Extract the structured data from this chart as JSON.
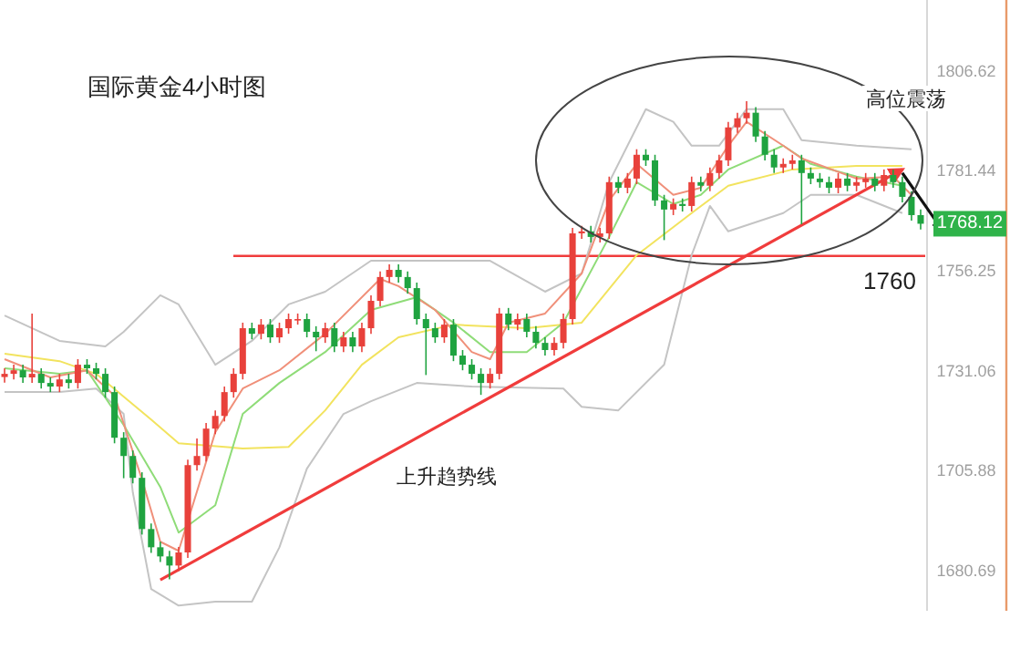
{
  "chart_data": {
    "type": "candlestick",
    "title": "国际黄金4小时图",
    "categories": [
      null,
      null,
      null,
      null,
      null,
      null,
      null,
      null,
      null,
      null,
      null,
      null,
      null,
      null,
      null,
      null,
      null,
      null,
      null,
      null,
      null,
      null,
      null,
      null,
      null,
      null,
      null,
      null,
      null,
      null,
      null,
      null,
      null,
      null,
      null,
      null,
      null,
      null,
      null,
      null,
      null,
      null,
      null,
      null,
      null,
      null,
      null,
      null,
      null,
      null,
      null,
      null,
      null,
      null,
      null,
      null,
      null,
      null,
      null,
      null,
      null,
      null,
      null,
      null,
      null,
      null,
      null,
      null,
      null,
      null,
      null,
      null,
      null,
      null,
      null,
      null,
      null,
      null,
      null,
      null,
      null,
      null,
      null,
      null,
      null,
      null,
      null,
      null,
      null,
      null,
      null,
      null,
      null,
      null,
      null,
      null,
      null,
      null,
      null,
      null,
      null
    ],
    "ohlc": [
      [
        1729.5,
        1731.7,
        1728.1,
        1730.3
      ],
      [
        1730.3,
        1732.6,
        1728.9,
        1731.2
      ],
      [
        1731.2,
        1732.6,
        1728.0,
        1729.4
      ],
      [
        1729.4,
        1745.5,
        1728.0,
        1730.3
      ],
      [
        1730.3,
        1731.7,
        1726.6,
        1728.0
      ],
      [
        1728.0,
        1729.4,
        1725.7,
        1727.1
      ],
      [
        1727.1,
        1730.3,
        1725.7,
        1728.9
      ],
      [
        1728.9,
        1730.3,
        1726.6,
        1728.0
      ],
      [
        1728.0,
        1734.0,
        1726.6,
        1732.6
      ],
      [
        1732.6,
        1734.0,
        1730.3,
        1731.7
      ],
      [
        1731.7,
        1733.1,
        1728.9,
        1730.3
      ],
      [
        1730.3,
        1731.7,
        1724.3,
        1725.7
      ],
      [
        1725.7,
        1727.1,
        1712.8,
        1714.2
      ],
      [
        1714.2,
        1715.6,
        1704.0,
        1709.6
      ],
      [
        1709.6,
        1711.0,
        1702.7,
        1704.1
      ],
      [
        1704.1,
        1705.5,
        1689.8,
        1691.2
      ],
      [
        1691.2,
        1692.6,
        1685.2,
        1686.6
      ],
      [
        1686.6,
        1688.0,
        1682.9,
        1684.3
      ],
      [
        1684.3,
        1685.7,
        1678.5,
        1682.0
      ],
      [
        1682.0,
        1686.7,
        1680.6,
        1685.3
      ],
      [
        1685.3,
        1708.7,
        1683.9,
        1707.3
      ],
      [
        1707.3,
        1714.0,
        1705.9,
        1709.6
      ],
      [
        1709.6,
        1717.9,
        1708.2,
        1716.5
      ],
      [
        1716.5,
        1721.1,
        1715.1,
        1719.7
      ],
      [
        1719.7,
        1727.1,
        1718.3,
        1725.7
      ],
      [
        1725.7,
        1731.7,
        1724.3,
        1730.3
      ],
      [
        1730.3,
        1743.2,
        1728.9,
        1741.8
      ],
      [
        1741.8,
        1743.2,
        1739.0,
        1740.4
      ],
      [
        1740.4,
        1744.1,
        1739.0,
        1742.7
      ],
      [
        1742.7,
        1744.1,
        1738.1,
        1739.5
      ],
      [
        1739.5,
        1743.2,
        1738.1,
        1741.8
      ],
      [
        1741.8,
        1745.5,
        1740.4,
        1744.1
      ],
      [
        1744.1,
        1745.5,
        1742.7,
        1744.1
      ],
      [
        1744.1,
        1745.5,
        1739.5,
        1740.9
      ],
      [
        1740.9,
        1742.3,
        1736.0,
        1739.5
      ],
      [
        1739.5,
        1743.2,
        1738.1,
        1741.8
      ],
      [
        1741.8,
        1743.2,
        1735.8,
        1737.2
      ],
      [
        1737.2,
        1740.9,
        1735.8,
        1739.5
      ],
      [
        1739.5,
        1740.9,
        1735.8,
        1737.2
      ],
      [
        1737.2,
        1743.2,
        1735.8,
        1741.8
      ],
      [
        1741.8,
        1750.1,
        1740.4,
        1748.7
      ],
      [
        1748.7,
        1756.1,
        1747.3,
        1754.7
      ],
      [
        1754.7,
        1757.9,
        1753.3,
        1756.5
      ],
      [
        1756.5,
        1757.9,
        1753.3,
        1754.7
      ],
      [
        1754.7,
        1756.1,
        1750.5,
        1751.9
      ],
      [
        1751.9,
        1753.3,
        1742.7,
        1744.1
      ],
      [
        1744.1,
        1745.5,
        1730.0,
        1741.8
      ],
      [
        1741.8,
        1743.2,
        1738.1,
        1739.5
      ],
      [
        1739.5,
        1744.1,
        1738.1,
        1742.7
      ],
      [
        1742.7,
        1744.1,
        1733.5,
        1734.9
      ],
      [
        1734.9,
        1736.3,
        1731.2,
        1732.6
      ],
      [
        1732.6,
        1734.0,
        1728.9,
        1730.3
      ],
      [
        1730.3,
        1731.7,
        1725.0,
        1728.0
      ],
      [
        1728.0,
        1731.7,
        1726.6,
        1730.3
      ],
      [
        1730.3,
        1746.9,
        1728.9,
        1745.5
      ],
      [
        1745.5,
        1746.9,
        1741.3,
        1742.7
      ],
      [
        1742.7,
        1745.5,
        1741.3,
        1744.1
      ],
      [
        1744.1,
        1745.5,
        1739.5,
        1740.9
      ],
      [
        1740.9,
        1742.3,
        1736.7,
        1738.1
      ],
      [
        1738.1,
        1739.5,
        1734.9,
        1736.3
      ],
      [
        1736.3,
        1739.5,
        1734.9,
        1738.1
      ],
      [
        1738.1,
        1745.5,
        1736.7,
        1744.1
      ],
      [
        1744.1,
        1767.1,
        1742.7,
        1765.7
      ],
      [
        1765.7,
        1767.6,
        1764.3,
        1766.2
      ],
      [
        1766.2,
        1767.6,
        1763.4,
        1764.8
      ],
      [
        1764.8,
        1767.1,
        1763.4,
        1765.7
      ],
      [
        1765.7,
        1780.0,
        1764.3,
        1778.6
      ],
      [
        1778.6,
        1780.0,
        1775.8,
        1777.2
      ],
      [
        1777.2,
        1780.9,
        1775.8,
        1779.5
      ],
      [
        1779.5,
        1786.9,
        1778.1,
        1785.5
      ],
      [
        1785.5,
        1786.9,
        1782.7,
        1784.1
      ],
      [
        1784.1,
        1785.5,
        1772.6,
        1774.0
      ],
      [
        1774.0,
        1775.4,
        1764.0,
        1771.7
      ],
      [
        1771.7,
        1774.5,
        1770.3,
        1773.1
      ],
      [
        1773.1,
        1774.5,
        1771.2,
        1772.6
      ],
      [
        1772.6,
        1780.0,
        1771.2,
        1778.6
      ],
      [
        1778.6,
        1780.0,
        1776.3,
        1777.7
      ],
      [
        1777.7,
        1782.3,
        1776.3,
        1780.9
      ],
      [
        1780.9,
        1785.5,
        1779.5,
        1784.1
      ],
      [
        1784.1,
        1793.8,
        1782.7,
        1792.4
      ],
      [
        1792.4,
        1796.1,
        1791.0,
        1794.7
      ],
      [
        1794.7,
        1799.0,
        1793.3,
        1796.1
      ],
      [
        1796.1,
        1797.5,
        1788.7,
        1790.1
      ],
      [
        1790.1,
        1791.5,
        1784.1,
        1785.5
      ],
      [
        1785.5,
        1786.9,
        1780.9,
        1782.3
      ],
      [
        1782.3,
        1784.6,
        1780.9,
        1783.2
      ],
      [
        1783.2,
        1785.5,
        1781.8,
        1784.1
      ],
      [
        1784.1,
        1785.5,
        1768.0,
        1780.9
      ],
      [
        1780.9,
        1782.3,
        1778.1,
        1779.5
      ],
      [
        1779.5,
        1780.9,
        1777.2,
        1778.6
      ],
      [
        1778.6,
        1780.0,
        1775.8,
        1777.2
      ],
      [
        1777.2,
        1780.9,
        1775.8,
        1779.5
      ],
      [
        1779.5,
        1780.9,
        1776.3,
        1777.7
      ],
      [
        1777.7,
        1780.0,
        1776.3,
        1778.6
      ],
      [
        1778.6,
        1780.9,
        1777.2,
        1779.5
      ],
      [
        1779.5,
        1780.9,
        1776.3,
        1777.7
      ],
      [
        1777.7,
        1781.8,
        1776.3,
        1780.4
      ],
      [
        1780.4,
        1781.8,
        1777.2,
        1778.6
      ],
      [
        1778.6,
        1780.0,
        1773.5,
        1774.9
      ],
      [
        1774.9,
        1776.3,
        1768.9,
        1770.3
      ],
      [
        1770.3,
        1771.7,
        1766.7,
        1768.12
      ]
    ],
    "colors": [
      "#e8413b",
      "#e8413b",
      "#1fa340",
      "#e8413b",
      "#1fa340",
      "#1fa340",
      "#e8413b",
      "#1fa340",
      "#e8413b",
      "#1fa340",
      "#1fa340",
      "#1fa340",
      "#1fa340",
      "#1fa340",
      "#1fa340",
      "#1fa340",
      "#1fa340",
      "#1fa340",
      "#1fa340",
      "#e8413b",
      "#e8413b",
      "#e8413b",
      "#e8413b",
      "#e8413b",
      "#e8413b",
      "#e8413b",
      "#e8413b",
      "#1fa340",
      "#e8413b",
      "#1fa340",
      "#e8413b",
      "#e8413b",
      "#e8413b",
      "#1fa340",
      "#1fa340",
      "#e8413b",
      "#1fa340",
      "#e8413b",
      "#1fa340",
      "#e8413b",
      "#e8413b",
      "#e8413b",
      "#e8413b",
      "#1fa340",
      "#1fa340",
      "#1fa340",
      "#1fa340",
      "#1fa340",
      "#e8413b",
      "#1fa340",
      "#1fa340",
      "#1fa340",
      "#1fa340",
      "#e8413b",
      "#e8413b",
      "#1fa340",
      "#e8413b",
      "#1fa340",
      "#1fa340",
      "#1fa340",
      "#e8413b",
      "#e8413b",
      "#e8413b",
      "#e8413b",
      "#1fa340",
      "#e8413b",
      "#e8413b",
      "#1fa340",
      "#e8413b",
      "#e8413b",
      "#1fa340",
      "#1fa340",
      "#1fa340",
      "#e8413b",
      "#1fa340",
      "#e8413b",
      "#1fa340",
      "#e8413b",
      "#e8413b",
      "#e8413b",
      "#e8413b",
      "#e8413b",
      "#1fa340",
      "#1fa340",
      "#1fa340",
      "#e8413b",
      "#e8413b",
      "#1fa340",
      "#1fa340",
      "#1fa340",
      "#1fa340",
      "#e8413b",
      "#1fa340",
      "#e8413b",
      "#e8413b",
      "#1fa340",
      "#e8413b",
      "#1fa340",
      "#1fa340",
      "#1fa340",
      "#1fa340"
    ],
    "series": [
      {
        "type": "line",
        "color": "#c4c4c4",
        "values": [
          1745.0,
          null,
          null,
          null,
          null,
          null,
          1738.6,
          null,
          null,
          null,
          null,
          1737.2,
          null,
          1740.9,
          null,
          null,
          null,
          1750.1,
          null,
          1747.8,
          null,
          null,
          null,
          1732.6,
          null,
          null,
          null,
          1738.6,
          null,
          null,
          null,
          1747.8,
          null,
          null,
          null,
          1751.0,
          null,
          null,
          null,
          null,
          1758.8,
          null,
          null,
          null,
          null,
          null,
          null,
          null,
          null,
          1758.8,
          null,
          null,
          null,
          1758.8,
          null,
          null,
          null,
          null,
          null,
          1751.0,
          null,
          null,
          null,
          1755.6,
          null,
          null,
          1778.6,
          null,
          null,
          null,
          1797.0,
          null,
          null,
          1793.8,
          null,
          1787.8,
          null,
          null,
          1787.8,
          null,
          null,
          1797.0,
          null,
          null,
          null,
          1797.0,
          null,
          1789.2,
          null,
          null,
          null,
          null,
          null,
          1787.8,
          null,
          null,
          null,
          null,
          null,
          1786.9,
          null
        ]
      },
      {
        "type": "line",
        "color": "#c4c4c4",
        "values": [
          1725.7,
          null,
          null,
          null,
          null,
          null,
          1725.7,
          null,
          null,
          null,
          1726.6,
          null,
          null,
          1720.2,
          1700.4,
          null,
          1676.1,
          null,
          null,
          1671.9,
          null,
          null,
          null,
          1672.9,
          null,
          null,
          null,
          1672.9,
          null,
          null,
          1686.6,
          null,
          null,
          1706.4,
          null,
          null,
          null,
          1720.2,
          null,
          null,
          1723.4,
          null,
          null,
          null,
          null,
          1728.0,
          null,
          null,
          null,
          null,
          null,
          1727.1,
          null,
          null,
          null,
          null,
          null,
          null,
          null,
          null,
          null,
          1726.6,
          null,
          1722.0,
          null,
          null,
          null,
          1721.1,
          null,
          null,
          null,
          null,
          1732.6,
          null,
          null,
          1760.2,
          null,
          1772.6,
          null,
          1766.2,
          null,
          null,
          null,
          null,
          null,
          1770.8,
          null,
          null,
          1775.4,
          null,
          null,
          null,
          null,
          1775.4,
          null,
          null,
          null,
          null,
          1770.8,
          null,
          null
        ]
      },
      {
        "type": "line",
        "color": "#f2e35e",
        "values": [
          1735.4,
          null,
          null,
          null,
          null,
          null,
          1733.5,
          null,
          null,
          null,
          1730.3,
          null,
          null,
          null,
          null,
          null,
          1718.8,
          null,
          null,
          1712.8,
          null,
          null,
          null,
          null,
          null,
          null,
          1711.5,
          null,
          null,
          null,
          null,
          1711.9,
          null,
          null,
          null,
          1721.1,
          null,
          null,
          null,
          1732.6,
          null,
          null,
          null,
          1739.5,
          null,
          null,
          null,
          null,
          null,
          1742.7,
          null,
          null,
          null,
          null,
          null,
          null,
          null,
          1741.8,
          null,
          null,
          null,
          1742.7,
          null,
          1743.2,
          null,
          null,
          null,
          null,
          null,
          1760.2,
          null,
          null,
          null,
          null,
          null,
          1770.8,
          null,
          null,
          null,
          1777.7,
          null,
          null,
          null,
          null,
          null,
          null,
          1781.8,
          null,
          null,
          null,
          null,
          null,
          null,
          1782.7,
          null,
          null,
          null,
          null,
          1782.7,
          null,
          null
        ]
      },
      {
        "type": "line",
        "color": "#8fdc78",
        "values": [
          1731.7,
          null,
          null,
          null,
          null,
          null,
          1730.3,
          null,
          null,
          1731.2,
          null,
          null,
          null,
          1717.4,
          null,
          null,
          null,
          1701.8,
          null,
          1690.3,
          null,
          null,
          null,
          1697.2,
          null,
          null,
          1720.2,
          null,
          null,
          null,
          1728.0,
          null,
          null,
          null,
          null,
          1735.8,
          null,
          null,
          null,
          null,
          1746.4,
          null,
          null,
          null,
          null,
          1749.6,
          null,
          null,
          null,
          1743.2,
          null,
          null,
          null,
          1735.8,
          null,
          null,
          null,
          1735.8,
          null,
          null,
          null,
          1743.2,
          null,
          null,
          null,
          null,
          1764.8,
          null,
          null,
          1778.6,
          null,
          null,
          null,
          1773.1,
          null,
          null,
          1775.4,
          null,
          null,
          1781.8,
          null,
          null,
          null,
          null,
          null,
          1787.8,
          null,
          null,
          1783.2,
          null,
          null,
          null,
          null,
          1780.0,
          null,
          null,
          null,
          null,
          1777.7,
          null,
          null
        ]
      },
      {
        "type": "line",
        "color": "#f0907a",
        "values": [
          1734.0,
          null,
          null,
          null,
          null,
          1729.4,
          null,
          null,
          null,
          1731.2,
          null,
          null,
          1724.8,
          null,
          null,
          1703.7,
          null,
          1688.0,
          null,
          1685.7,
          null,
          null,
          null,
          1715.6,
          null,
          null,
          1726.6,
          null,
          null,
          null,
          1731.2,
          null,
          null,
          null,
          null,
          1740.4,
          null,
          null,
          null,
          null,
          null,
          1754.2,
          null,
          1752.4,
          null,
          null,
          null,
          1746.4,
          null,
          null,
          null,
          1735.8,
          null,
          1734.0,
          null,
          1743.2,
          null,
          null,
          null,
          1745.5,
          null,
          null,
          null,
          1755.6,
          null,
          null,
          1774.0,
          null,
          null,
          1783.2,
          null,
          null,
          null,
          1775.4,
          null,
          null,
          1777.2,
          null,
          null,
          1787.8,
          null,
          1793.8,
          null,
          null,
          null,
          1787.8,
          null,
          1784.6,
          null,
          null,
          null,
          null,
          null,
          1779.5,
          null,
          null,
          null,
          1780.0,
          null,
          1775.4,
          null
        ]
      },
      {
        "type": "line",
        "color": "#f03c3c",
        "values": [
          null,
          null,
          null,
          null,
          null,
          null,
          null,
          null,
          null,
          null,
          null,
          null,
          null,
          null,
          null,
          null,
          null,
          1678.4,
          null,
          null,
          null,
          null,
          null,
          null,
          null,
          null,
          null,
          null,
          null,
          null,
          null,
          null,
          null,
          null,
          null,
          null,
          null,
          null,
          null,
          null,
          null,
          null,
          null,
          null,
          null,
          null,
          null,
          null,
          null,
          null,
          null,
          null,
          null,
          null,
          null,
          null,
          null,
          null,
          null,
          null,
          null,
          null,
          null,
          null,
          null,
          null,
          null,
          null,
          null,
          null,
          null,
          null,
          null,
          null,
          null,
          null,
          null,
          null,
          null,
          null,
          null,
          null,
          null,
          null,
          null,
          null,
          null,
          null,
          null,
          null,
          null,
          null,
          null,
          null,
          null,
          null,
          null,
          null,
          1781.8,
          null,
          null
        ]
      }
    ],
    "ylim": [
      1670.6,
      1824.5
    ],
    "yticks": [
      1680.69,
      1705.88,
      1731.06,
      1756.25,
      1781.44,
      1806.62
    ],
    "tick_labels": "y",
    "ref_lines": [
      {
        "axis": "y",
        "value": 1760,
        "label": "1760",
        "color": "#f03c3c"
      }
    ],
    "annotations": [
      "上升趋势线",
      "高位震荡",
      "1768.12"
    ]
  }
}
